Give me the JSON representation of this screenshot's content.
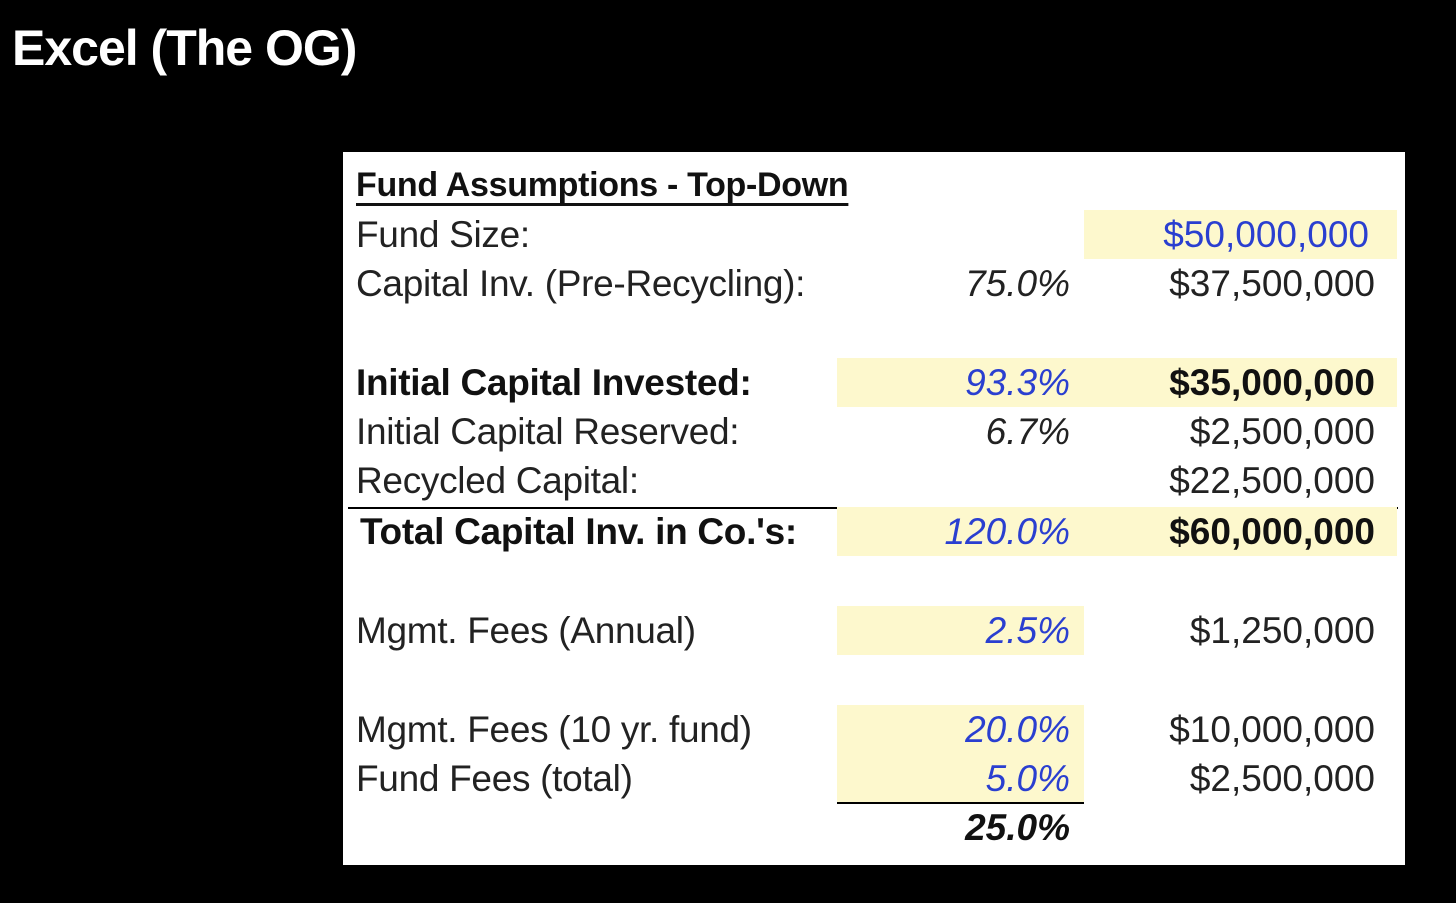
{
  "slide_title": "Excel (The OG)",
  "table": {
    "header": "Fund Assumptions - Top-Down",
    "rows": [
      {
        "label": "Fund Size:",
        "pct": "",
        "value": "$50,000,000"
      },
      {
        "label": "Capital Inv. (Pre-Recycling):",
        "pct": "75.0%",
        "value": "$37,500,000"
      },
      {
        "label": "Initial Capital Invested:",
        "pct": "93.3%",
        "value": "$35,000,000"
      },
      {
        "label": "Initial Capital Reserved:",
        "pct": "6.7%",
        "value": "$2,500,000"
      },
      {
        "label": "Recycled Capital:",
        "pct": "",
        "value": "$22,500,000"
      },
      {
        "label": "Total Capital Inv. in Co.'s:",
        "pct": "120.0%",
        "value": "$60,000,000"
      },
      {
        "label": "Mgmt. Fees (Annual)",
        "pct": "2.5%",
        "value": "$1,250,000"
      },
      {
        "label": "Mgmt. Fees (10 yr. fund)",
        "pct": "20.0%",
        "value": "$10,000,000"
      },
      {
        "label": "Fund Fees (total)",
        "pct": "5.0%",
        "value": "$2,500,000"
      }
    ],
    "fees_total_pct": "25.0%"
  },
  "colors": {
    "background": "#000000",
    "sheet": "#ffffff",
    "input_highlight": "#fdf8cd",
    "input_text": "#2a3fd0"
  }
}
